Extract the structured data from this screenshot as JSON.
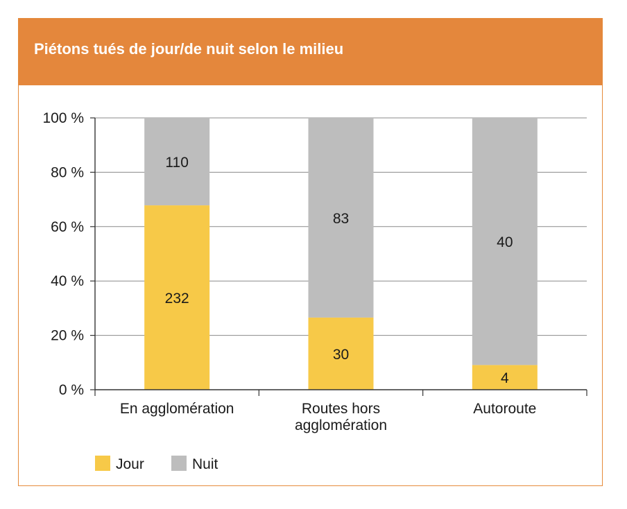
{
  "chart_data": {
    "type": "bar",
    "stacked": "percent",
    "title": "Piétons tués de jour/de nuit selon le milieu",
    "categories": [
      [
        "En agglomération"
      ],
      [
        "Routes hors",
        "agglomération"
      ],
      [
        "Autoroute"
      ]
    ],
    "series": [
      {
        "name": "Jour",
        "values": [
          232,
          30,
          4
        ],
        "color": "#f7c948"
      },
      {
        "name": "Nuit",
        "values": [
          110,
          83,
          40
        ],
        "color": "#bdbdbd"
      }
    ],
    "y_ticks": [
      "0 %",
      "20 %",
      "40 %",
      "60 %",
      "80 %",
      "100 %"
    ],
    "ylim": [
      0,
      100
    ],
    "grid": true,
    "legend_position": "bottom-left"
  },
  "colors": {
    "header": "#e4873c",
    "grid": "#8a8a8a",
    "axis": "#333333"
  }
}
